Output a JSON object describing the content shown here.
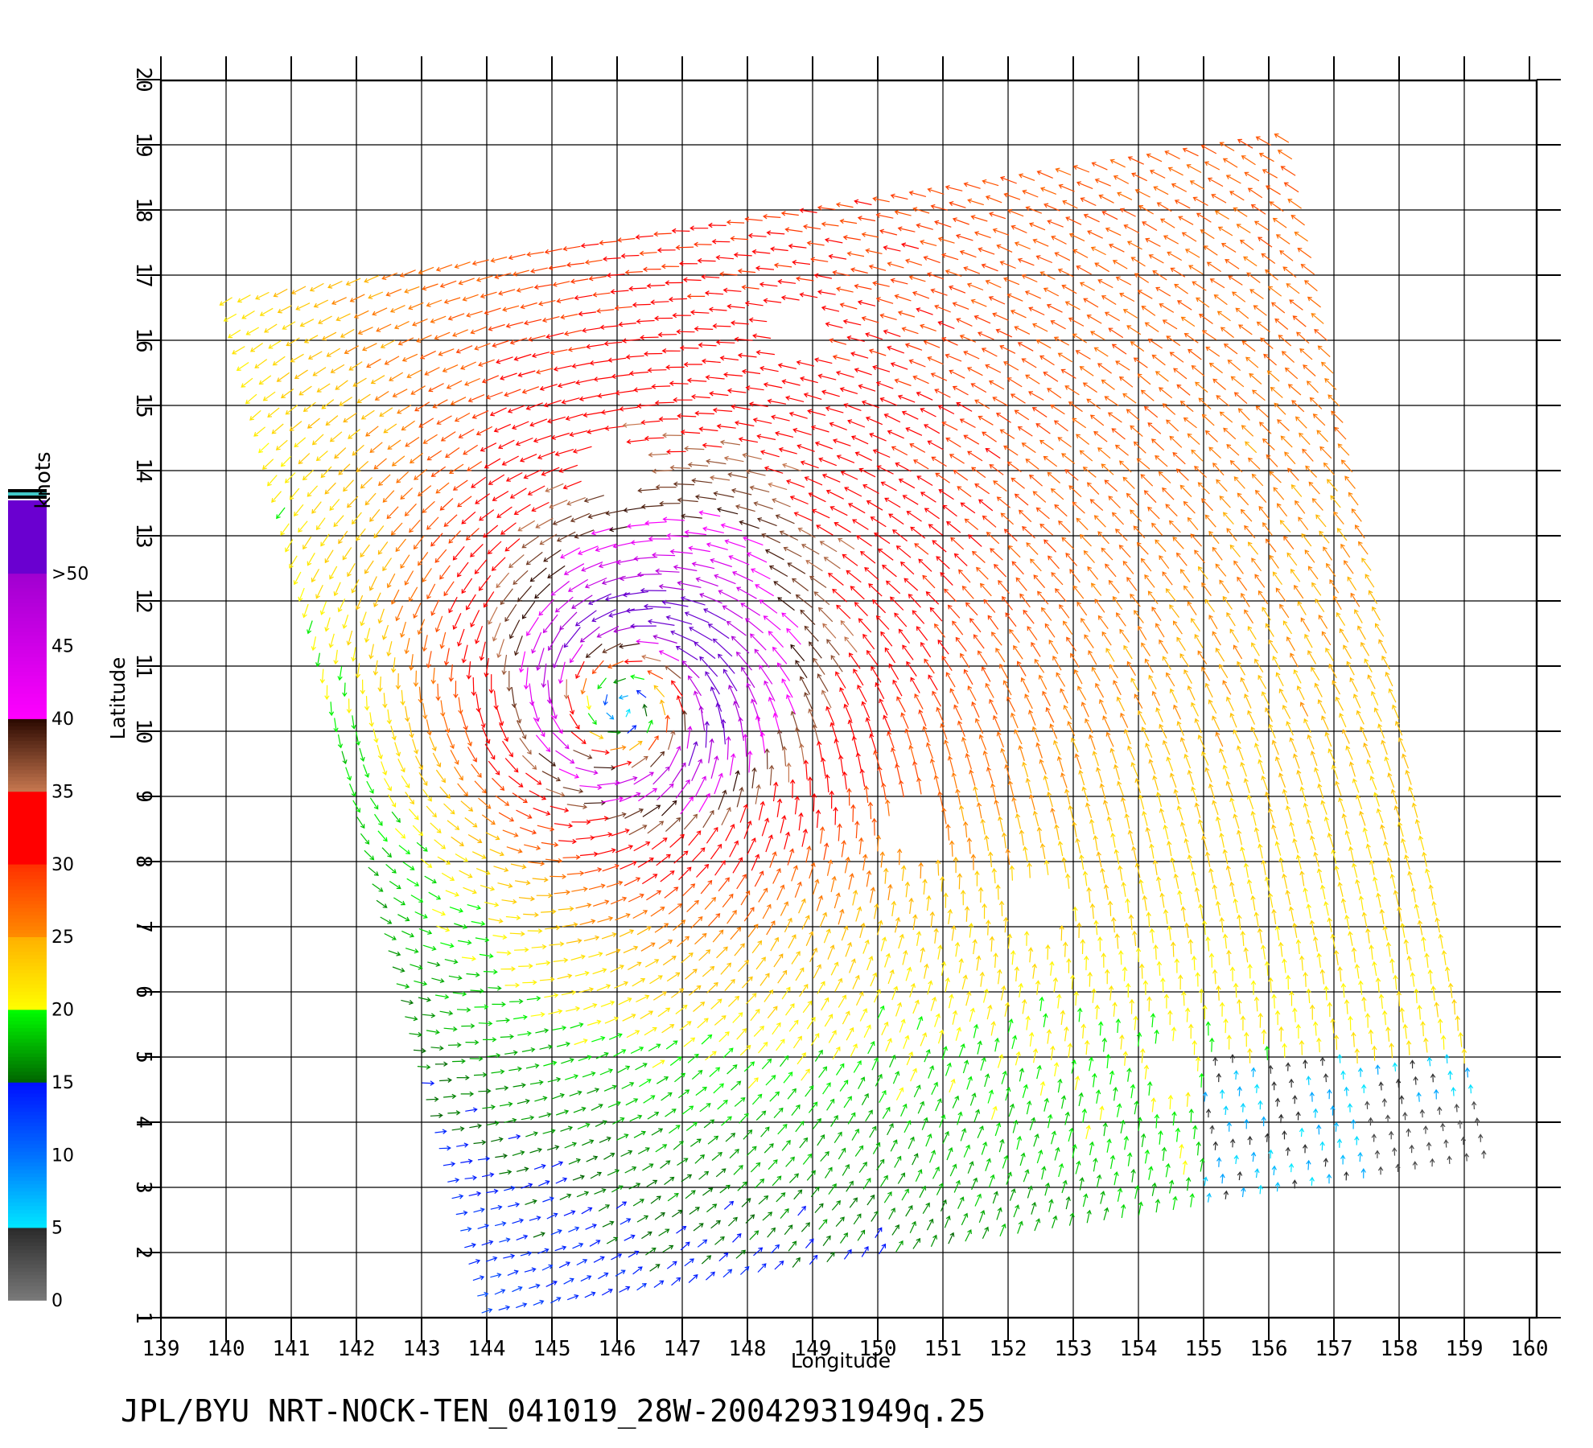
{
  "chart_data": {
    "type": "vector-field",
    "xlabel": "Longitude",
    "ylabel": "Latitude",
    "xlim": [
      139,
      160
    ],
    "ylim": [
      1,
      20
    ],
    "x_ticks": [
      139,
      140,
      141,
      142,
      143,
      144,
      145,
      146,
      147,
      148,
      149,
      150,
      151,
      152,
      153,
      154,
      155,
      156,
      157,
      158,
      159,
      160
    ],
    "y_ticks": [
      1,
      2,
      3,
      4,
      5,
      6,
      7,
      8,
      9,
      10,
      11,
      12,
      13,
      14,
      15,
      16,
      17,
      18,
      19,
      20
    ],
    "grid": true,
    "storm_center": {
      "lon": 146.2,
      "lat": 10.5
    },
    "swath_corners": [
      [
        140.0,
        16.6
      ],
      [
        156.2,
        19.1
      ],
      [
        159.3,
        3.5
      ],
      [
        144.0,
        1.1
      ]
    ],
    "colorbar": {
      "title": "knots",
      "placement": "left",
      "labels": [
        "0",
        "5",
        "10",
        "15",
        "20",
        "25",
        "30",
        "35",
        "40",
        "45",
        ">50"
      ],
      "segments": [
        {
          "from": 0,
          "to": 5,
          "colors": [
            "#7a7a7a",
            "#2a2a2a"
          ]
        },
        {
          "from": 5,
          "to": 10,
          "colors": [
            "#00e8ff",
            "#0070ff"
          ]
        },
        {
          "from": 10,
          "to": 15,
          "colors": [
            "#0070ff",
            "#0010ff"
          ]
        },
        {
          "from": 15,
          "to": 20,
          "colors": [
            "#006400",
            "#00ff00"
          ]
        },
        {
          "from": 20,
          "to": 25,
          "colors": [
            "#ffff00",
            "#ffb000"
          ]
        },
        {
          "from": 25,
          "to": 30,
          "colors": [
            "#ff8c00",
            "#ff3000"
          ]
        },
        {
          "from": 30,
          "to": 35,
          "colors": [
            "#ff0000",
            "#ff0000"
          ]
        },
        {
          "from": 35,
          "to": 40,
          "colors": [
            "#c87850",
            "#2a0800"
          ]
        },
        {
          "from": 40,
          "to": 50,
          "colors": [
            "#ff00ff",
            "#a000d0"
          ]
        },
        {
          "from": 50,
          "to": 55,
          "colors": [
            "#6a00d0",
            "#6a00d0"
          ]
        }
      ]
    }
  },
  "footer": "JPL/BYU  NRT-NOCK-TEN_041019_28W-20042931949q.25"
}
